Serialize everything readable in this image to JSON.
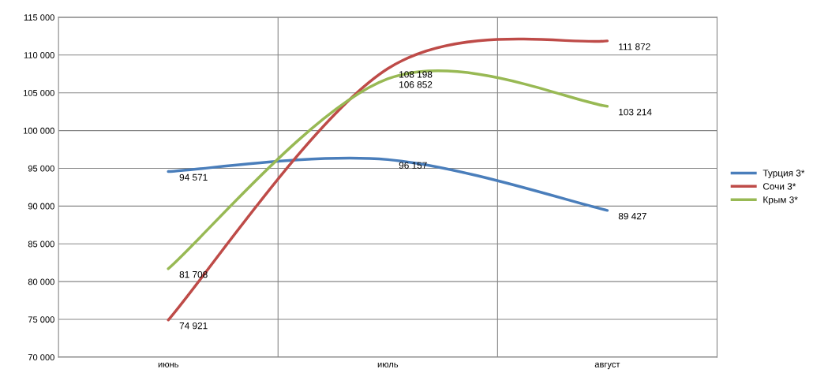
{
  "chart_data": {
    "type": "line",
    "categories": [
      "июнь",
      "июль",
      "август"
    ],
    "series": [
      {
        "name": "Турция 3*",
        "color": "#4a7ebb",
        "values": [
          94571,
          96157,
          89427
        ]
      },
      {
        "name": "Сочи 3*",
        "color": "#be4b48",
        "values": [
          74921,
          108198,
          111872
        ]
      },
      {
        "name": "Крым 3*",
        "color": "#98b954",
        "values": [
          81708,
          106852,
          103214
        ]
      }
    ],
    "ylim": [
      70000,
      115000
    ],
    "yticks": [
      {
        "value": 70000,
        "label": "70 000"
      },
      {
        "value": 75000,
        "label": "75 000"
      },
      {
        "value": 80000,
        "label": "80 000"
      },
      {
        "value": 85000,
        "label": "85 000"
      },
      {
        "value": 90000,
        "label": "90 000"
      },
      {
        "value": 95000,
        "label": "95 000"
      },
      {
        "value": 100000,
        "label": "100 000"
      },
      {
        "value": 105000,
        "label": "105 000"
      },
      {
        "value": 110000,
        "label": "110 000"
      },
      {
        "value": 115000,
        "label": "115 000"
      }
    ],
    "data_labels": true,
    "grid": true,
    "legend": "right",
    "marker": "none",
    "line_style": "solid"
  }
}
